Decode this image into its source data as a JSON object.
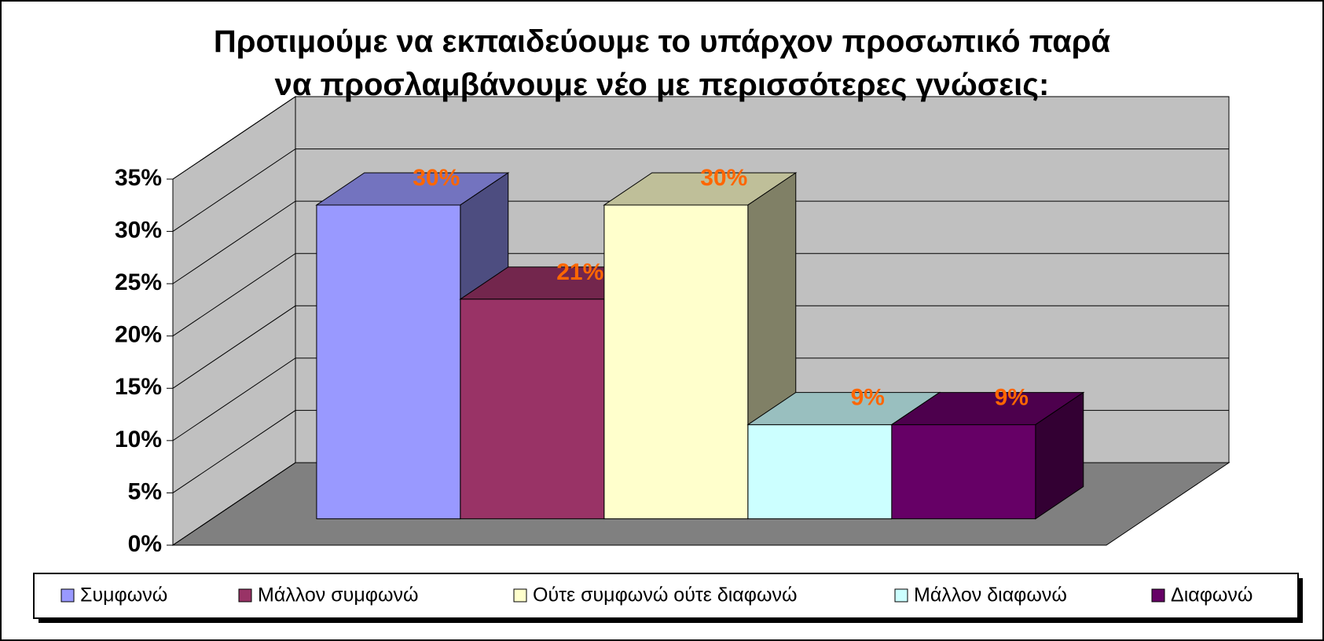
{
  "chart_data": {
    "type": "bar3d",
    "title": "Προτιμούμε να εκπαιδεύουμε το υπάρχον προσωπικό παρά\nνα προσλαμβάνουμε νέο με περισσότερες γνώσεις:",
    "series": [
      {
        "name": "Συμφωνώ",
        "color": "#9999ff",
        "values": [
          30
        ],
        "value_labels": [
          "30%"
        ]
      },
      {
        "name": "Μάλλον συμφωνώ",
        "color": "#993366",
        "values": [
          21
        ],
        "value_labels": [
          "21%"
        ]
      },
      {
        "name": "Ούτε συμφωνώ ούτε διαφωνώ",
        "color": "#ffffcc",
        "values": [
          30
        ],
        "value_labels": [
          "30%"
        ]
      },
      {
        "name": "Μάλλον διαφωνώ",
        "color": "#ccffff",
        "values": [
          9
        ],
        "value_labels": [
          "9%"
        ]
      },
      {
        "name": "Διαφωνώ",
        "color": "#660066",
        "values": [
          9
        ],
        "value_labels": [
          "9%"
        ]
      }
    ],
    "ylim": [
      0,
      35
    ],
    "yticks": [
      {
        "value": 0,
        "label": "0%"
      },
      {
        "value": 5,
        "label": "5%"
      },
      {
        "value": 10,
        "label": "10%"
      },
      {
        "value": 15,
        "label": "15%"
      },
      {
        "value": 20,
        "label": "20%"
      },
      {
        "value": 25,
        "label": "25%"
      },
      {
        "value": 30,
        "label": "30%"
      },
      {
        "value": 35,
        "label": "35%"
      }
    ],
    "grid": true,
    "value_label_color": "#ff6600",
    "legend": "bottom"
  }
}
